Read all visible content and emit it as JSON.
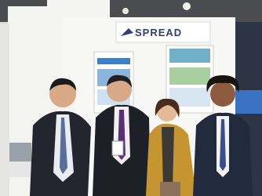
{
  "booth_sign": {
    "text": "SPREAD"
  }
}
